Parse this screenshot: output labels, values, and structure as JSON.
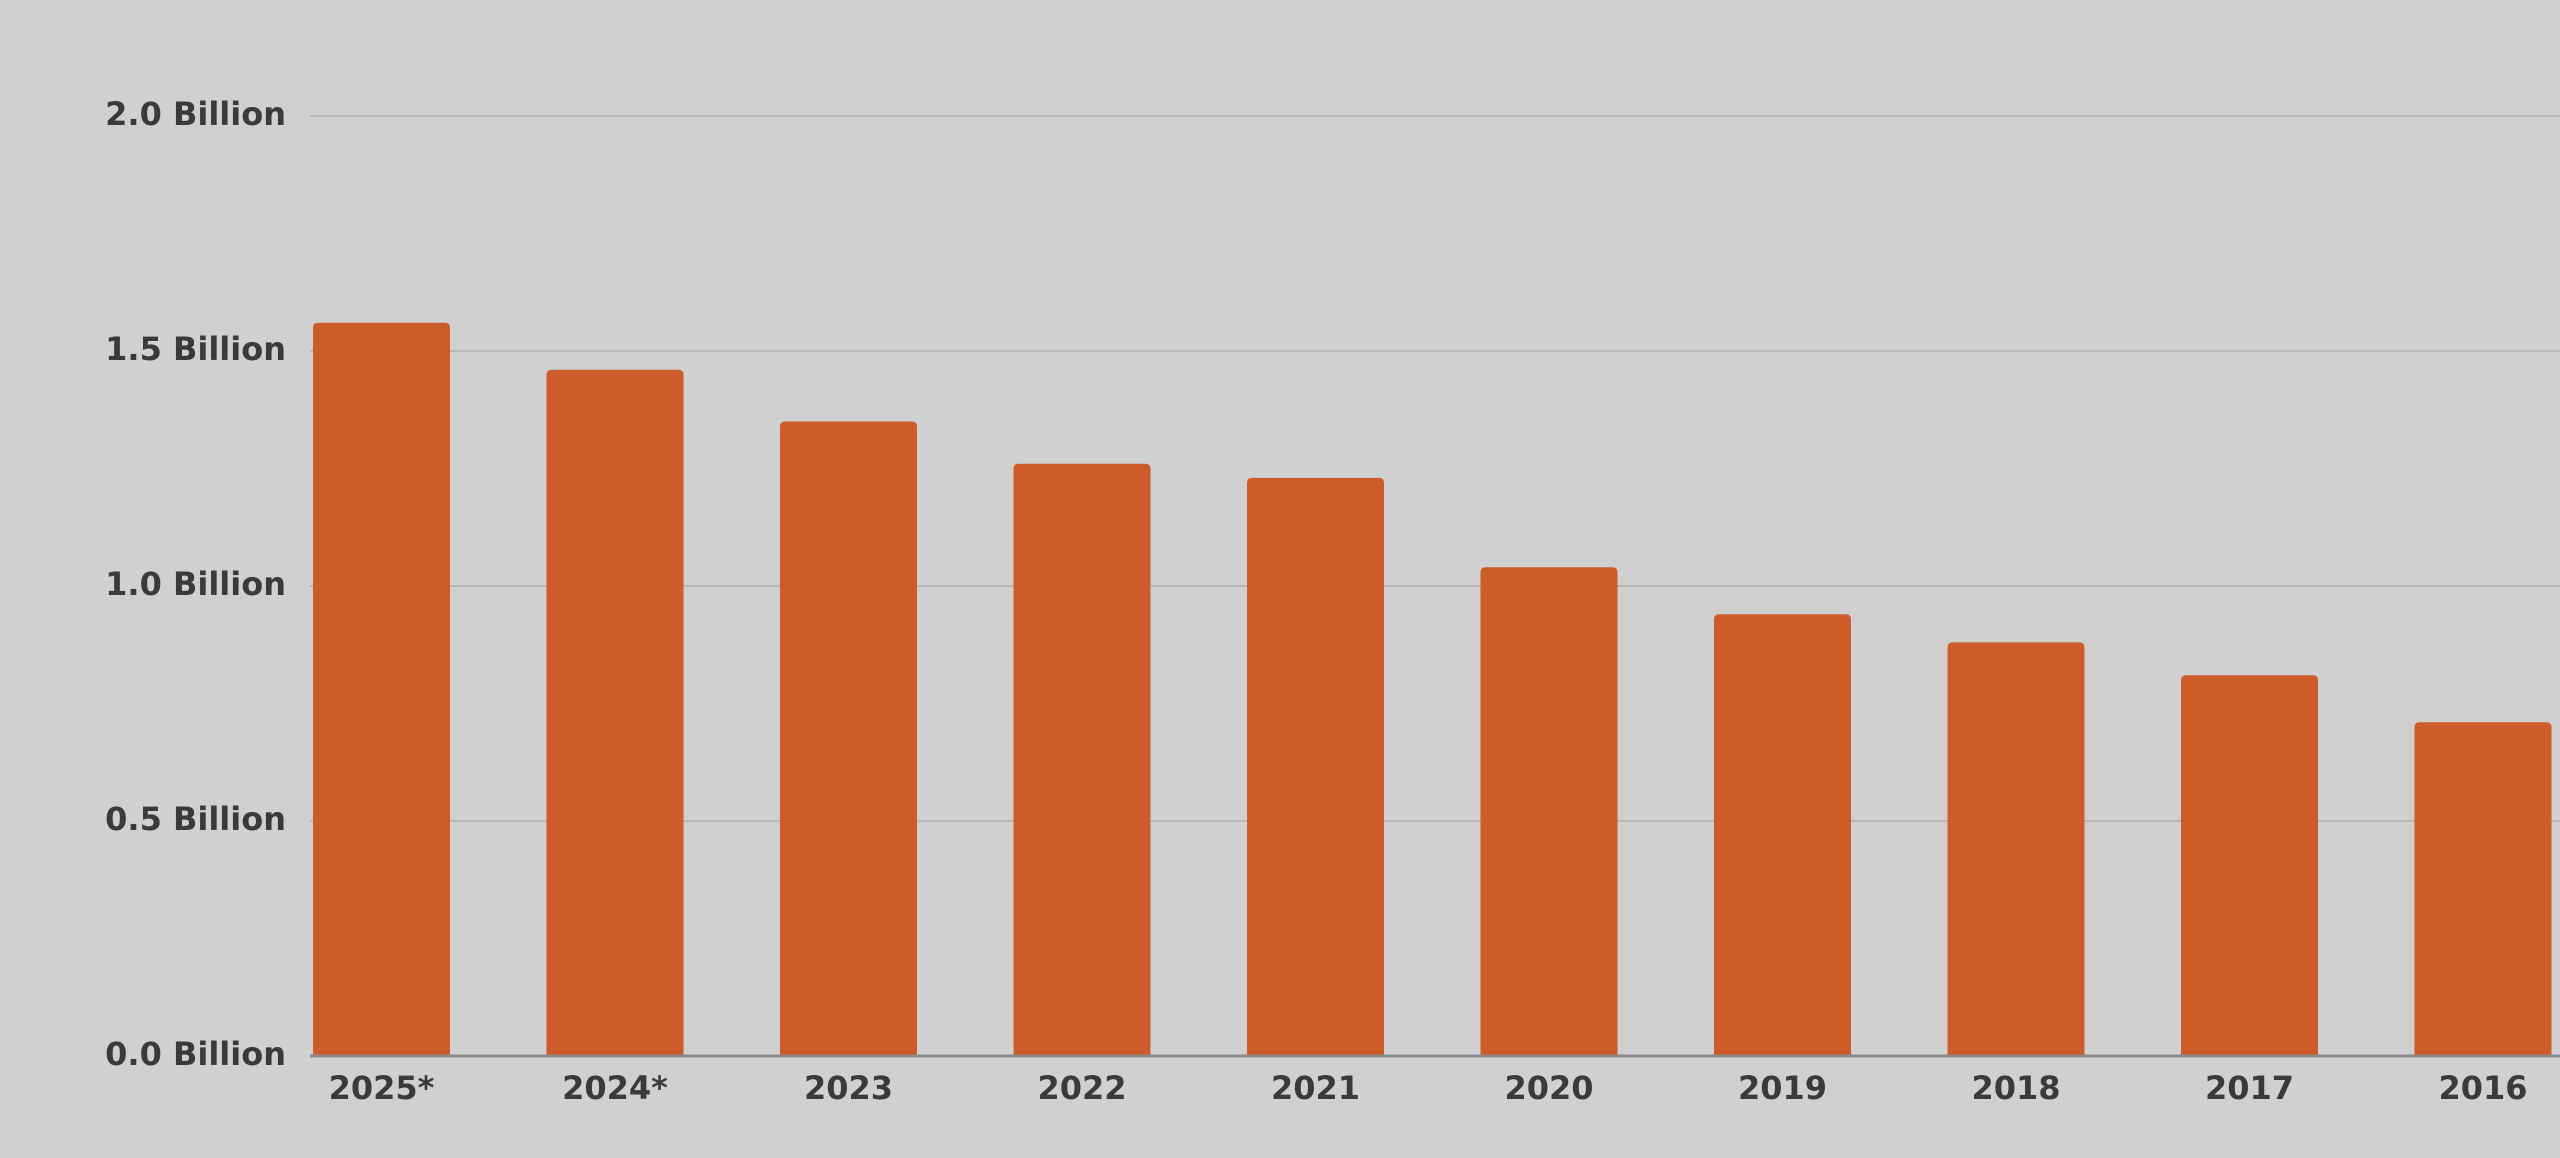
{
  "chart_data": {
    "type": "bar",
    "categories": [
      "2025*",
      "2024*",
      "2023",
      "2022",
      "2021",
      "2020",
      "2019",
      "2018",
      "2017",
      "2016"
    ],
    "values": [
      1.56,
      1.46,
      1.35,
      1.26,
      1.23,
      1.04,
      0.94,
      0.88,
      0.81,
      0.71
    ],
    "color": "#cd5c2a",
    "ylim": [
      0,
      2
    ],
    "yticks": [
      {
        "value": 0,
        "label": "0.0 Billion"
      },
      {
        "value": 0.5,
        "label": "0.5 Billion"
      },
      {
        "value": 1,
        "label": "1.0 Billion"
      },
      {
        "value": 1.5,
        "label": "1.5 Billion"
      },
      {
        "value": 2,
        "label": "2.0 Billion"
      }
    ],
    "grid": true
  }
}
